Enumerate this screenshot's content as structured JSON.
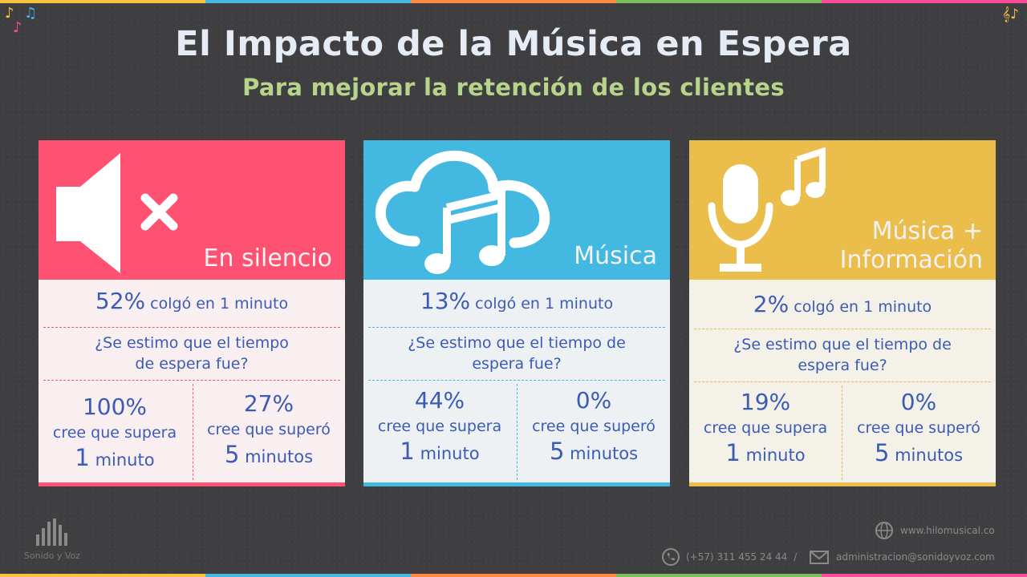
{
  "title": "El Impacto de la Música en Espera",
  "subtitle": "Para mejorar la retención de los clientes",
  "colors": {
    "background": "#3f3f42",
    "red": "#ff5272",
    "blue": "#43b9e1",
    "yellow": "#ebbd4a",
    "text": "#3b5bb5",
    "subtitle": "#b7d48a",
    "stripe": [
      "#f6c33c",
      "#43b9e1",
      "#ff8a3d",
      "#79c05a",
      "#ff4a9a"
    ]
  },
  "cards": [
    {
      "label": "En silencio",
      "icon": "muted-speaker-icon",
      "stat_pct": "52%",
      "stat_text": "colgó en 1 minuto",
      "question_l1": "¿Se estimo que el tiempo",
      "question_l2": "de espera fue?",
      "left": {
        "pct": "100%",
        "desc": "cree que supera",
        "num": "1",
        "unit": "minuto"
      },
      "right": {
        "pct": "27%",
        "desc": "cree que superó",
        "num": "5",
        "unit": "minutos"
      }
    },
    {
      "label": "Música",
      "icon": "cloud-music-icon",
      "stat_pct": "13%",
      "stat_text": "colgó en 1 minuto",
      "question_l1": "¿Se estimo que el tiempo de",
      "question_l2": "espera fue?",
      "left": {
        "pct": "44%",
        "desc": "cree que supera",
        "num": "1",
        "unit": "minuto"
      },
      "right": {
        "pct": "0%",
        "desc": "cree que superó",
        "num": "5",
        "unit": "minutos"
      }
    },
    {
      "label_l1": "Música +",
      "label_l2": "Información",
      "icon": "microphone-music-icon",
      "stat_pct": "2%",
      "stat_text": "colgó en 1 minuto",
      "question_l1": "¿Se estimo que el tiempo de",
      "question_l2": "espera fue?",
      "left": {
        "pct": "19%",
        "desc": "cree que supera",
        "num": "1",
        "unit": "minuto"
      },
      "right": {
        "pct": "0%",
        "desc": "cree que superó",
        "num": "5",
        "unit": "minutos"
      }
    }
  ],
  "footer": {
    "brand": "Sonido y Voz",
    "website": "www.hilomusical.co",
    "phone": "(+57) 311 455 24 44",
    "separator": "/",
    "email": "administracion@sonidoyvoz.com"
  },
  "decorations": {
    "note1": "♪",
    "note2": "♫",
    "note3": "♪",
    "note_right": "𝄞♪"
  }
}
